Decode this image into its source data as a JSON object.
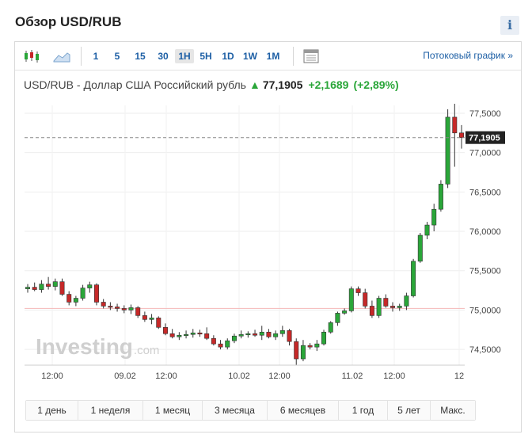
{
  "page_title": "Обзор USD/RUB",
  "info_label": "i",
  "toolbar": {
    "timeframes": [
      "1",
      "5",
      "15",
      "30",
      "1H",
      "5H",
      "1D",
      "1W",
      "1M"
    ],
    "active_timeframe": "1H",
    "streaming_link": "Потоковый график »"
  },
  "quote": {
    "instrument": "USD/RUB - Доллар США Российский рубль",
    "direction_arrow": "▲",
    "price": "77,1905",
    "change": "+2,1689",
    "change_pct": "(+2,89%)"
  },
  "watermark": {
    "text": "Investing",
    "suffix": ".com"
  },
  "ranges": [
    "1 день",
    "1 неделя",
    "1 месяц",
    "3 месяца",
    "6 месяцев",
    "1 год",
    "5 лет",
    "Макс."
  ],
  "colors": {
    "up": "#2aa639",
    "down": "#c62828",
    "link": "#1d5fa5",
    "last_price_bg": "#222222",
    "prev_close_line": "#f4b7b7"
  },
  "chart_data": {
    "type": "candlestick",
    "title": "USD/RUB - Доллар США Российский рубль",
    "ylim": [
      74.3,
      77.6
    ],
    "yticks": [
      77.5,
      77.0,
      76.5,
      76.0,
      75.5,
      75.0,
      74.5
    ],
    "ytick_labels": [
      "77,5000",
      "77,0000",
      "76,5000",
      "76,0000",
      "75,5000",
      "75,0000",
      "74,5000"
    ],
    "xtick_labels": [
      "12:00",
      "09.02",
      "12:00",
      "10.02",
      "12:00",
      "11.02",
      "12:00",
      "12"
    ],
    "last_price": 77.1905,
    "last_price_label": "77,1905",
    "previous_close": 75.02,
    "grid": true,
    "candles": [
      {
        "o": 75.27,
        "h": 75.33,
        "l": 75.22,
        "c": 75.29
      },
      {
        "o": 75.29,
        "h": 75.35,
        "l": 75.24,
        "c": 75.26
      },
      {
        "o": 75.26,
        "h": 75.38,
        "l": 75.22,
        "c": 75.33
      },
      {
        "o": 75.33,
        "h": 75.42,
        "l": 75.26,
        "c": 75.3
      },
      {
        "o": 75.3,
        "h": 75.4,
        "l": 75.25,
        "c": 75.36
      },
      {
        "o": 75.36,
        "h": 75.4,
        "l": 75.18,
        "c": 75.2
      },
      {
        "o": 75.2,
        "h": 75.24,
        "l": 75.06,
        "c": 75.1
      },
      {
        "o": 75.1,
        "h": 75.18,
        "l": 75.05,
        "c": 75.15
      },
      {
        "o": 75.15,
        "h": 75.32,
        "l": 75.12,
        "c": 75.28
      },
      {
        "o": 75.28,
        "h": 75.36,
        "l": 75.22,
        "c": 75.32
      },
      {
        "o": 75.32,
        "h": 75.34,
        "l": 75.06,
        "c": 75.1
      },
      {
        "o": 75.1,
        "h": 75.14,
        "l": 75.02,
        "c": 75.05
      },
      {
        "o": 75.05,
        "h": 75.1,
        "l": 75.0,
        "c": 75.04
      },
      {
        "o": 75.04,
        "h": 75.08,
        "l": 74.98,
        "c": 75.02
      },
      {
        "o": 75.02,
        "h": 75.06,
        "l": 74.96,
        "c": 75.0
      },
      {
        "o": 75.0,
        "h": 75.07,
        "l": 74.95,
        "c": 75.03
      },
      {
        "o": 75.03,
        "h": 75.05,
        "l": 74.9,
        "c": 74.93
      },
      {
        "o": 74.93,
        "h": 74.98,
        "l": 74.85,
        "c": 74.88
      },
      {
        "o": 74.88,
        "h": 74.95,
        "l": 74.82,
        "c": 74.9
      },
      {
        "o": 74.9,
        "h": 74.92,
        "l": 74.76,
        "c": 74.78
      },
      {
        "o": 74.78,
        "h": 74.83,
        "l": 74.68,
        "c": 74.7
      },
      {
        "o": 74.7,
        "h": 74.76,
        "l": 74.64,
        "c": 74.66
      },
      {
        "o": 74.66,
        "h": 74.72,
        "l": 74.62,
        "c": 74.68
      },
      {
        "o": 74.68,
        "h": 74.74,
        "l": 74.64,
        "c": 74.69
      },
      {
        "o": 74.69,
        "h": 74.76,
        "l": 74.65,
        "c": 74.71
      },
      {
        "o": 74.71,
        "h": 74.75,
        "l": 74.66,
        "c": 74.7
      },
      {
        "o": 74.7,
        "h": 74.78,
        "l": 74.62,
        "c": 74.64
      },
      {
        "o": 74.64,
        "h": 74.68,
        "l": 74.55,
        "c": 74.57
      },
      {
        "o": 74.57,
        "h": 74.62,
        "l": 74.5,
        "c": 74.53
      },
      {
        "o": 74.53,
        "h": 74.64,
        "l": 74.5,
        "c": 74.61
      },
      {
        "o": 74.61,
        "h": 74.7,
        "l": 74.58,
        "c": 74.67
      },
      {
        "o": 74.67,
        "h": 74.74,
        "l": 74.64,
        "c": 74.69
      },
      {
        "o": 74.69,
        "h": 74.73,
        "l": 74.65,
        "c": 74.7
      },
      {
        "o": 74.7,
        "h": 74.75,
        "l": 74.66,
        "c": 74.68
      },
      {
        "o": 74.68,
        "h": 74.8,
        "l": 74.62,
        "c": 74.72
      },
      {
        "o": 74.72,
        "h": 74.76,
        "l": 74.64,
        "c": 74.66
      },
      {
        "o": 74.66,
        "h": 74.74,
        "l": 74.62,
        "c": 74.7
      },
      {
        "o": 74.7,
        "h": 74.8,
        "l": 74.66,
        "c": 74.74
      },
      {
        "o": 74.74,
        "h": 74.76,
        "l": 74.55,
        "c": 74.6
      },
      {
        "o": 74.6,
        "h": 74.64,
        "l": 74.3,
        "c": 74.38
      },
      {
        "o": 74.38,
        "h": 74.62,
        "l": 74.35,
        "c": 74.55
      },
      {
        "o": 74.55,
        "h": 74.58,
        "l": 74.5,
        "c": 74.53
      },
      {
        "o": 74.53,
        "h": 74.62,
        "l": 74.48,
        "c": 74.57
      },
      {
        "o": 74.57,
        "h": 74.75,
        "l": 74.55,
        "c": 74.72
      },
      {
        "o": 74.72,
        "h": 74.86,
        "l": 74.7,
        "c": 74.84
      },
      {
        "o": 74.84,
        "h": 74.98,
        "l": 74.8,
        "c": 74.96
      },
      {
        "o": 74.96,
        "h": 75.02,
        "l": 74.94,
        "c": 74.99
      },
      {
        "o": 74.99,
        "h": 75.3,
        "l": 74.97,
        "c": 75.27
      },
      {
        "o": 75.27,
        "h": 75.3,
        "l": 75.18,
        "c": 75.22
      },
      {
        "o": 75.22,
        "h": 75.27,
        "l": 75.02,
        "c": 75.05
      },
      {
        "o": 75.05,
        "h": 75.12,
        "l": 74.9,
        "c": 74.93
      },
      {
        "o": 74.93,
        "h": 75.18,
        "l": 74.9,
        "c": 75.15
      },
      {
        "o": 75.15,
        "h": 75.2,
        "l": 75.03,
        "c": 75.05
      },
      {
        "o": 75.05,
        "h": 75.1,
        "l": 74.98,
        "c": 75.03
      },
      {
        "o": 75.03,
        "h": 75.08,
        "l": 74.99,
        "c": 75.05
      },
      {
        "o": 75.05,
        "h": 75.22,
        "l": 75.0,
        "c": 75.18
      },
      {
        "o": 75.18,
        "h": 75.65,
        "l": 75.16,
        "c": 75.62
      },
      {
        "o": 75.62,
        "h": 75.98,
        "l": 75.6,
        "c": 75.95
      },
      {
        "o": 75.95,
        "h": 76.12,
        "l": 75.9,
        "c": 76.08
      },
      {
        "o": 76.08,
        "h": 76.35,
        "l": 76.0,
        "c": 76.28
      },
      {
        "o": 76.28,
        "h": 76.65,
        "l": 76.25,
        "c": 76.6
      },
      {
        "o": 76.6,
        "h": 77.55,
        "l": 76.55,
        "c": 77.45
      },
      {
        "o": 77.45,
        "h": 77.62,
        "l": 76.82,
        "c": 77.25
      },
      {
        "o": 77.25,
        "h": 77.35,
        "l": 77.05,
        "c": 77.19
      }
    ]
  }
}
